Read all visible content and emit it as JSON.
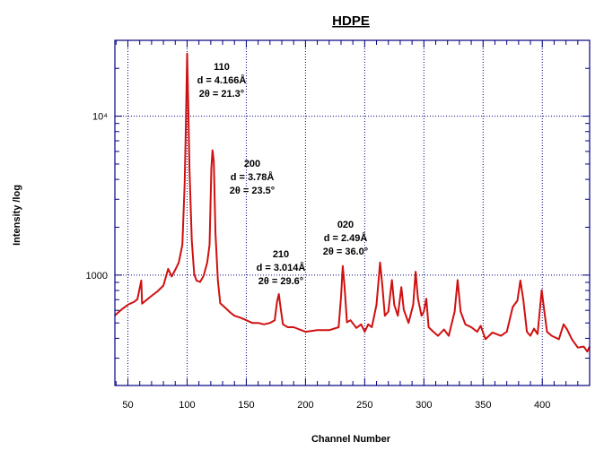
{
  "chart_data": {
    "type": "line",
    "title": "HDPE",
    "xlabel": "Channel Number",
    "ylabel": "Intensity /log",
    "xlim": [
      39,
      440
    ],
    "ylim": [
      202,
      30000
    ],
    "yscale": "log",
    "grid": true,
    "x_tick_labels": [
      "50",
      "100",
      "150",
      "200",
      "250",
      "300",
      "350",
      "400"
    ],
    "x_ticks": [
      50,
      100,
      150,
      200,
      250,
      300,
      350,
      400
    ],
    "y_tick_labels": [
      "1000",
      "10⁴"
    ],
    "y_ticks": [
      1000,
      10000
    ],
    "colors": {
      "line": "#d01010",
      "axes": "#000080",
      "grid": "#000080"
    },
    "annotations": [
      {
        "lines": [
          "110",
          "d = 4.166Å",
          "2θ = 21.3°"
        ]
      },
      {
        "lines": [
          "200",
          "d = 3.78Å",
          "2θ = 23.5°"
        ]
      },
      {
        "lines": [
          "210",
          "d = 3.014Å",
          "2θ = 29.6°"
        ]
      },
      {
        "lines": [
          "020",
          "d = 2.49Å",
          "2θ = 36.0°"
        ]
      }
    ],
    "series": [
      {
        "x": [
          39,
          45,
          50,
          55,
          58,
          61.3,
          62,
          65,
          70,
          75,
          80,
          84,
          87,
          90,
          93,
          96,
          98,
          99,
          100,
          101,
          102,
          104,
          106,
          108,
          111,
          114,
          117,
          119,
          120.5,
          121.5,
          122.5,
          124,
          126,
          128,
          132,
          136,
          140,
          145,
          150,
          155,
          160,
          165,
          170,
          174,
          176,
          177.5,
          179,
          181,
          185,
          190,
          200,
          210,
          220,
          228,
          230,
          231.5,
          233,
          235,
          238,
          243,
          247,
          250,
          253,
          256,
          260,
          263,
          265,
          267,
          270,
          273,
          275,
          278,
          281,
          283,
          287,
          291,
          293,
          295,
          298,
          300,
          302,
          304,
          308,
          312,
          317,
          321,
          326,
          328.5,
          331,
          335,
          340,
          345,
          348,
          352,
          358,
          365,
          370,
          375,
          379,
          381.5,
          384,
          387,
          390,
          393,
          396,
          399.5,
          401,
          404,
          408,
          414,
          418,
          421,
          425,
          430,
          435,
          438,
          440
        ],
        "y": [
          557,
          610,
          651,
          677,
          705,
          925,
          660,
          690,
          740,
          790,
          860,
          1095,
          980,
          1080,
          1200,
          1550,
          3800,
          9300,
          24800,
          11600,
          4700,
          1650,
          1010,
          925,
          905,
          990,
          1200,
          1550,
          4700,
          6100,
          5200,
          1830,
          920,
          665,
          625,
          585,
          555,
          540,
          520,
          500,
          500,
          490,
          500,
          520,
          680,
          760,
          620,
          490,
          470,
          470,
          440,
          450,
          450,
          470,
          730,
          1140,
          850,
          505,
          520,
          465,
          490,
          440,
          490,
          470,
          650,
          1200,
          850,
          555,
          590,
          930,
          650,
          555,
          840,
          605,
          500,
          650,
          1050,
          710,
          555,
          590,
          710,
          470,
          440,
          415,
          455,
          415,
          590,
          930,
          590,
          490,
          470,
          440,
          480,
          395,
          435,
          415,
          440,
          630,
          690,
          925,
          700,
          440,
          415,
          460,
          425,
          805,
          650,
          440,
          415,
          395,
          490,
          455,
          395,
          350,
          355,
          330,
          355
        ]
      }
    ]
  }
}
